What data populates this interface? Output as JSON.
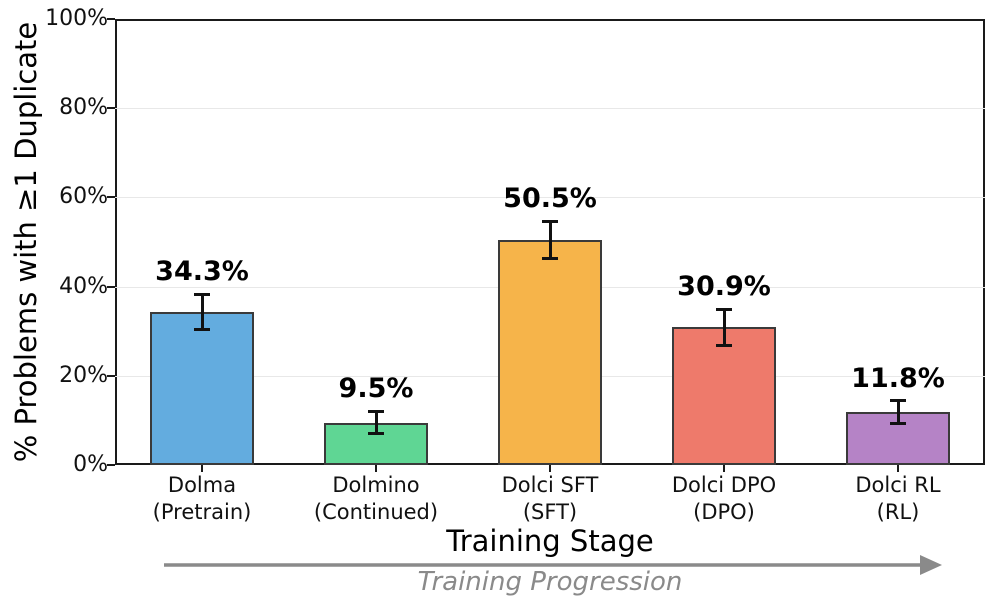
{
  "chart_data": {
    "type": "bar",
    "title": "",
    "xlabel": "Training Stage",
    "ylabel": "% Problems with ≥1 Duplicate",
    "categories": [
      "Dolma\n(Pretrain)",
      "Dolmino\n(Continued)",
      "Dolci SFT\n(SFT)",
      "Dolci DPO\n(DPO)",
      "Dolci RL\n(RL)"
    ],
    "values": [
      34.3,
      9.5,
      50.5,
      30.9,
      11.8
    ],
    "errors": [
      4.0,
      2.5,
      4.2,
      4.0,
      2.6
    ],
    "value_labels": [
      "34.3%",
      "9.5%",
      "50.5%",
      "30.9%",
      "11.8%"
    ],
    "bar_colors": [
      "#63ACDF",
      "#5FD694",
      "#F6B44A",
      "#EE7A6B",
      "#B583C6"
    ],
    "bar_edge_color": "#3a3a3a",
    "error_bar_color": "#111111",
    "ylim": [
      0,
      100
    ],
    "yticks": [
      0,
      20,
      40,
      60,
      80,
      100
    ],
    "ytick_labels": [
      "0%",
      "20%",
      "40%",
      "60%",
      "80%",
      "100%"
    ],
    "grid": "horizontal",
    "annotation": {
      "text": "Training Progression",
      "color": "#8a8a8a",
      "arrow_color": "#8a8a8a"
    }
  }
}
